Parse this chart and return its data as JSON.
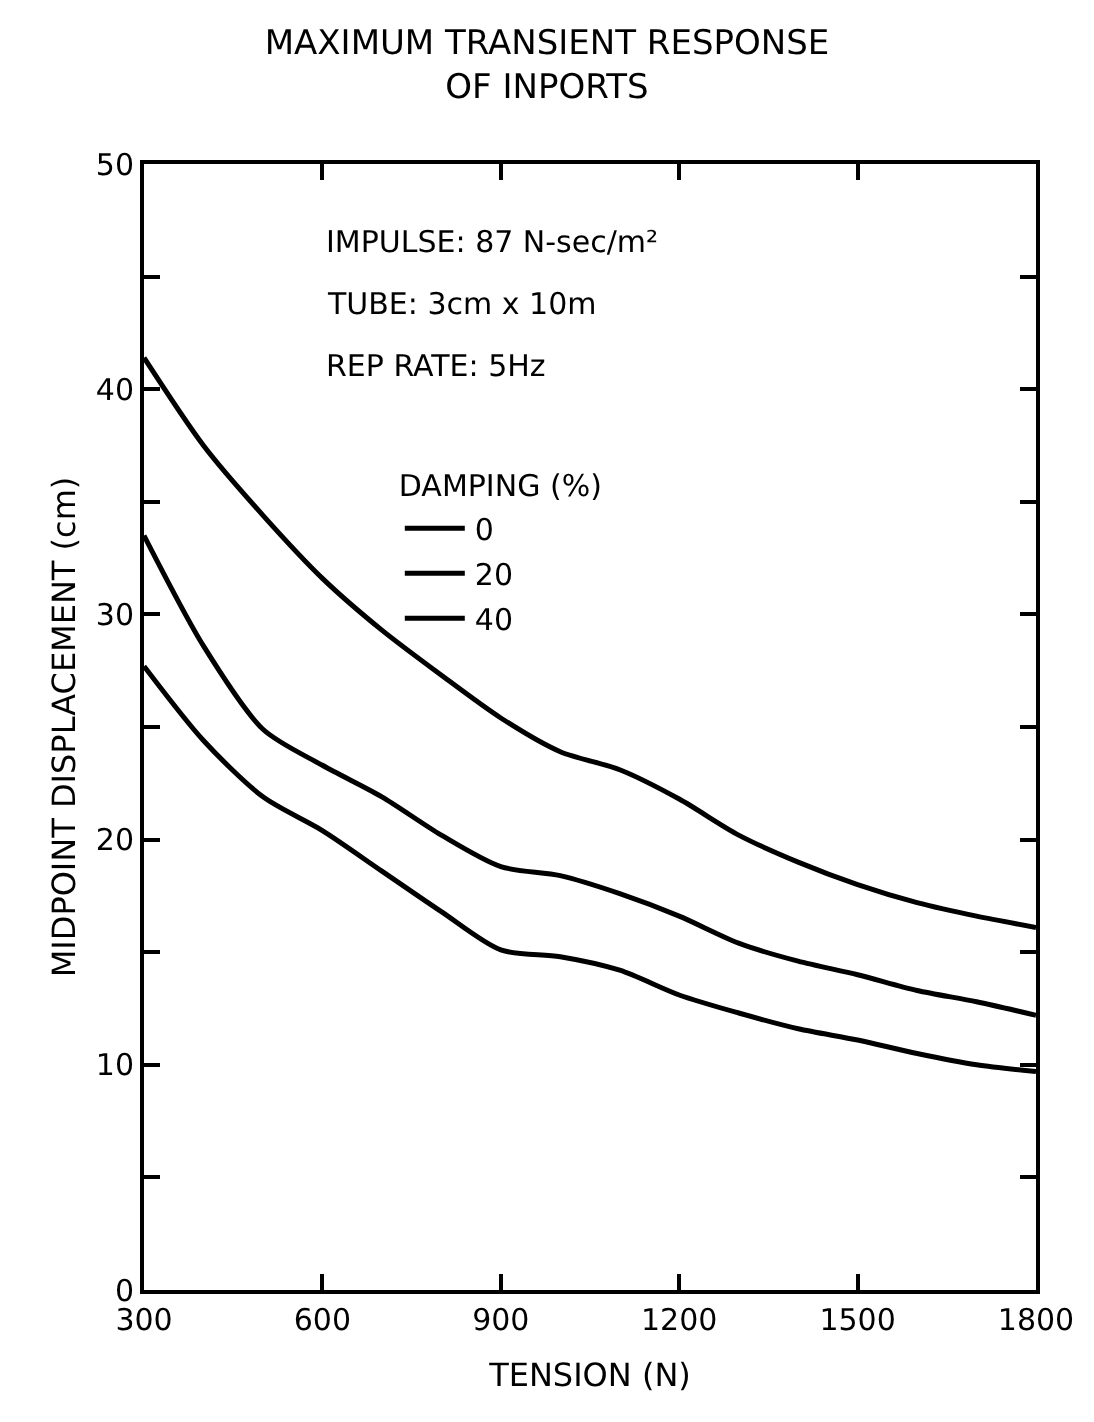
{
  "chart_data": {
    "type": "line",
    "title": "MAXIMUM TRANSIENT RESPONSE\nOF INPORTS",
    "xlabel": "TENSION (N)",
    "ylabel": "MIDPOINT DISPLACEMENT (cm)",
    "annotations": [
      "IMPULSE: 87 N-sec/m²",
      "TUBE: 3cm x 10m",
      "REP RATE: 5Hz"
    ],
    "legend_title": "DAMPING (%)",
    "legend": "top",
    "x": [
      300,
      400,
      500,
      600,
      700,
      800,
      900,
      1000,
      1100,
      1200,
      1300,
      1400,
      1500,
      1600,
      1700,
      1800
    ],
    "series": [
      {
        "name": "0",
        "color": "#000000",
        "values": [
          41.4,
          37.5,
          34.4,
          31.6,
          29.3,
          27.3,
          25.4,
          23.9,
          23.1,
          21.8,
          20.2,
          19.0,
          18.0,
          17.2,
          16.6,
          16.1
        ]
      },
      {
        "name": "20",
        "color": "#000000",
        "values": [
          33.5,
          28.6,
          24.9,
          23.3,
          21.9,
          20.2,
          18.8,
          18.4,
          17.6,
          16.6,
          15.4,
          14.6,
          14.0,
          13.3,
          12.8,
          12.2
        ]
      },
      {
        "name": "40",
        "color": "#000000",
        "values": [
          27.7,
          24.4,
          21.9,
          20.4,
          18.6,
          16.8,
          15.1,
          14.8,
          14.2,
          13.1,
          12.3,
          11.6,
          11.1,
          10.5,
          10.0,
          9.7
        ]
      }
    ],
    "xlim": [
      300,
      1800
    ],
    "xticks": [
      300,
      600,
      900,
      1200,
      1500,
      1800
    ],
    "ylim": [
      0,
      50
    ],
    "yticks": [
      0,
      {
        "value": 5,
        "label": null
      },
      10,
      {
        "value": 15,
        "label": null
      },
      20,
      {
        "value": 25,
        "label": null
      },
      30,
      {
        "value": 35,
        "label": null
      },
      40,
      {
        "value": 45,
        "label": null
      },
      50
    ],
    "grid": false,
    "marker": "none",
    "line_style": "solid"
  }
}
